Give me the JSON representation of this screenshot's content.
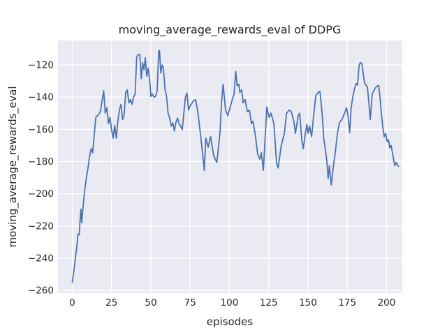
{
  "chart_data": {
    "type": "line",
    "title": "moving_average_rewards_eval of DDPG",
    "xlabel": "episodes",
    "ylabel": "moving_average_rewards_eval",
    "x_ticks": [
      0,
      25,
      50,
      75,
      100,
      125,
      150,
      175,
      200
    ],
    "y_ticks": [
      -120,
      -140,
      -160,
      -180,
      -200,
      -220,
      -240,
      -260
    ],
    "xlim": [
      -9.1,
      210.0
    ],
    "ylim": [
      -261.7,
      -104.8
    ],
    "grid": true,
    "legend": "none",
    "colors": {
      "line": "#4C72B0",
      "plot_background": "#EAEAF2",
      "grid": "#FFFFFF",
      "text": "#262626",
      "figure_background": "#FFFFFF"
    },
    "series": [
      {
        "name": "moving_average_rewards_eval",
        "points": [
          [
            0,
            -255
          ],
          [
            1,
            -248
          ],
          [
            2,
            -240
          ],
          [
            3,
            -232
          ],
          [
            3.6,
            -225
          ],
          [
            4.4,
            -225.5
          ],
          [
            5,
            -216
          ],
          [
            5.5,
            -209.5
          ],
          [
            6,
            -218
          ],
          [
            7,
            -207
          ],
          [
            8,
            -197
          ],
          [
            9,
            -190
          ],
          [
            10,
            -184
          ],
          [
            11,
            -177
          ],
          [
            12,
            -172
          ],
          [
            13,
            -174.5
          ],
          [
            14,
            -163
          ],
          [
            15,
            -152.5
          ],
          [
            16,
            -151.5
          ],
          [
            17,
            -150.5
          ],
          [
            18,
            -148.5
          ],
          [
            19,
            -142
          ],
          [
            20,
            -136
          ],
          [
            21,
            -150
          ],
          [
            22,
            -146.5
          ],
          [
            23,
            -156.5
          ],
          [
            24,
            -152.5
          ],
          [
            25,
            -160
          ],
          [
            26,
            -165.5
          ],
          [
            27,
            -157.5
          ],
          [
            28,
            -165.5
          ],
          [
            29,
            -155
          ],
          [
            30,
            -148
          ],
          [
            31,
            -144.5
          ],
          [
            32,
            -154
          ],
          [
            33,
            -151
          ],
          [
            34,
            -137
          ],
          [
            35,
            -135.5
          ],
          [
            36,
            -143.5
          ],
          [
            37,
            -141.5
          ],
          [
            38,
            -144.5
          ],
          [
            39,
            -140
          ],
          [
            40,
            -138
          ],
          [
            41,
            -115
          ],
          [
            42,
            -113.5
          ],
          [
            43,
            -113.5
          ],
          [
            43.9,
            -128.5
          ],
          [
            44.7,
            -118.5
          ],
          [
            45.6,
            -123
          ],
          [
            46.5,
            -115.5
          ],
          [
            47.4,
            -127
          ],
          [
            48.3,
            -122
          ],
          [
            49.2,
            -128.5
          ],
          [
            50,
            -139.5
          ],
          [
            51,
            -138
          ],
          [
            52,
            -140
          ],
          [
            53,
            -139.5
          ],
          [
            54,
            -136
          ],
          [
            55,
            -111.5
          ],
          [
            55.5,
            -111
          ],
          [
            56.3,
            -125
          ],
          [
            57.2,
            -120
          ],
          [
            58,
            -122
          ],
          [
            59,
            -135
          ],
          [
            60,
            -139.5
          ],
          [
            61,
            -150
          ],
          [
            62,
            -153
          ],
          [
            63,
            -158
          ],
          [
            64,
            -156
          ],
          [
            65,
            -161
          ],
          [
            66,
            -155.5
          ],
          [
            67,
            -153
          ],
          [
            68,
            -156.5
          ],
          [
            69,
            -158
          ],
          [
            70,
            -160
          ],
          [
            71,
            -150
          ],
          [
            72,
            -140
          ],
          [
            73,
            -137.5
          ],
          [
            74,
            -148
          ],
          [
            75,
            -145.5
          ],
          [
            76,
            -144
          ],
          [
            77,
            -142.5
          ],
          [
            78.5,
            -141.5
          ],
          [
            80,
            -150
          ],
          [
            81.5,
            -162.5
          ],
          [
            83,
            -175.5
          ],
          [
            84,
            -185.5
          ],
          [
            85,
            -165.5
          ],
          [
            86.5,
            -171
          ],
          [
            88,
            -164.5
          ],
          [
            90,
            -176.5
          ],
          [
            92,
            -180.5
          ],
          [
            94,
            -162
          ],
          [
            95,
            -143
          ],
          [
            96,
            -132
          ],
          [
            97.5,
            -148
          ],
          [
            99,
            -151.5
          ],
          [
            100.5,
            -146
          ],
          [
            102,
            -141
          ],
          [
            103,
            -138
          ],
          [
            104,
            -124
          ],
          [
            105,
            -133
          ],
          [
            106,
            -132
          ],
          [
            106.6,
            -137
          ],
          [
            107.8,
            -135.5
          ],
          [
            108.7,
            -143.5
          ],
          [
            110,
            -141.5
          ],
          [
            111.4,
            -149
          ],
          [
            112.7,
            -148
          ],
          [
            114,
            -156.5
          ],
          [
            115,
            -155
          ],
          [
            116.3,
            -162.5
          ],
          [
            118,
            -175.5
          ],
          [
            119.4,
            -178.5
          ],
          [
            120.3,
            -174.5
          ],
          [
            121.6,
            -185.5
          ],
          [
            123.8,
            -146
          ],
          [
            125.2,
            -152.5
          ],
          [
            126.5,
            -150
          ],
          [
            128.3,
            -156.5
          ],
          [
            130,
            -181
          ],
          [
            131,
            -184
          ],
          [
            133,
            -170
          ],
          [
            135,
            -162.5
          ],
          [
            136.3,
            -150
          ],
          [
            137.2,
            -149
          ],
          [
            138,
            -148
          ],
          [
            139.4,
            -149
          ],
          [
            141,
            -155
          ],
          [
            142,
            -162.5
          ],
          [
            143.8,
            -151.5
          ],
          [
            144.7,
            -150
          ],
          [
            146,
            -166.5
          ],
          [
            147,
            -172
          ],
          [
            148.3,
            -162.5
          ],
          [
            149.3,
            -157
          ],
          [
            150.1,
            -162.5
          ],
          [
            151,
            -158
          ],
          [
            152.3,
            -164.5
          ],
          [
            153.5,
            -152
          ],
          [
            155,
            -139
          ],
          [
            156.5,
            -137
          ],
          [
            157.6,
            -136.5
          ],
          [
            159,
            -150
          ],
          [
            160,
            -165.5
          ],
          [
            161,
            -172
          ],
          [
            162,
            -180
          ],
          [
            162.8,
            -190.5
          ],
          [
            163.6,
            -182.5
          ],
          [
            164.8,
            -194.5
          ],
          [
            166,
            -184
          ],
          [
            167.4,
            -174
          ],
          [
            168.7,
            -162.5
          ],
          [
            170,
            -156
          ],
          [
            171.8,
            -153.5
          ],
          [
            173.2,
            -150
          ],
          [
            174.5,
            -146.5
          ],
          [
            175.5,
            -152
          ],
          [
            176.5,
            -162
          ],
          [
            177.5,
            -146
          ],
          [
            178.5,
            -140
          ],
          [
            179.5,
            -135
          ],
          [
            180.7,
            -131.5
          ],
          [
            181.5,
            -132.5
          ],
          [
            182.5,
            -120.5
          ],
          [
            183.3,
            -118.5
          ],
          [
            184.3,
            -119
          ],
          [
            185.2,
            -126
          ],
          [
            186,
            -131.5
          ],
          [
            187.8,
            -133.5
          ],
          [
            188.8,
            -144
          ],
          [
            189.6,
            -154
          ],
          [
            190.9,
            -138
          ],
          [
            192.7,
            -134.5
          ],
          [
            194,
            -133
          ],
          [
            195,
            -132.8
          ],
          [
            195.8,
            -139.5
          ],
          [
            196.7,
            -150.5
          ],
          [
            197.6,
            -158.5
          ],
          [
            198.5,
            -164.5
          ],
          [
            199.4,
            -162.5
          ],
          [
            200.3,
            -167.5
          ],
          [
            201.2,
            -166.5
          ],
          [
            202,
            -171.5
          ],
          [
            202.9,
            -170
          ],
          [
            204,
            -176
          ],
          [
            205.2,
            -182.5
          ],
          [
            206.2,
            -180.5
          ],
          [
            207.5,
            -183
          ]
        ]
      }
    ]
  }
}
